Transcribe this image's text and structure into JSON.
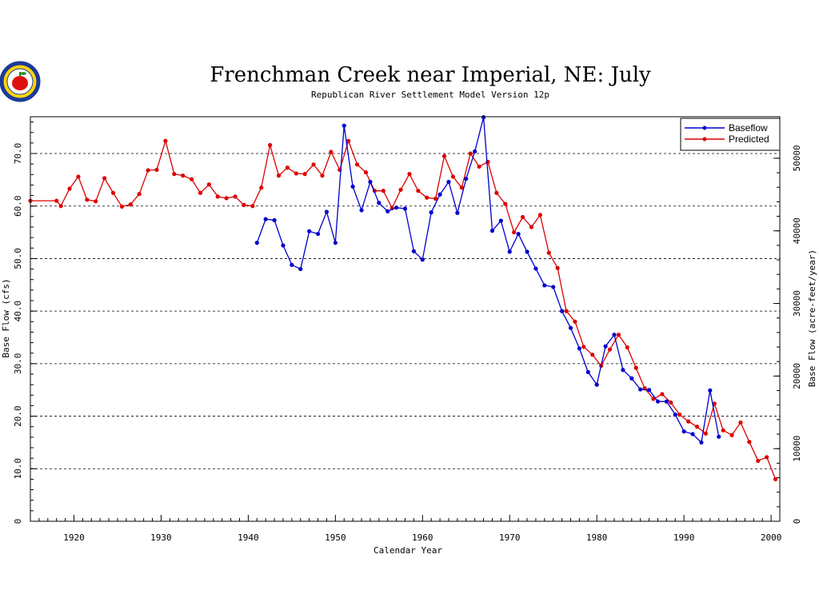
{
  "chart_data": {
    "type": "line",
    "title": "Frenchman Creek near Imperial, NE: July",
    "subtitle": "Republican River Settlement Model Version 12p",
    "xlabel": "Calendar Year",
    "ylabel": "Base Flow (cfs)",
    "ylabel_right": "Base Flow (acre-feet/year)",
    "xlim": [
      1915,
      2001
    ],
    "ylim": [
      0,
      77
    ],
    "x_ticks": [
      1920,
      1930,
      1940,
      1950,
      1960,
      1970,
      1980,
      1990,
      2000
    ],
    "x_tick_labels": [
      "1920",
      "1930",
      "1940",
      "1950",
      "1960",
      "1970",
      "1980",
      "1990",
      "2000"
    ],
    "y_ticks": [
      0,
      10,
      20,
      30,
      40,
      50,
      60,
      70
    ],
    "y_tick_labels": [
      "0",
      "10.0",
      "20.0",
      "30.0",
      "40.0",
      "50.0",
      "60.0",
      "70.0"
    ],
    "right_ticks": [
      0,
      10000,
      20000,
      30000,
      40000,
      50000
    ],
    "right_tick_labels": [
      "0",
      "10000",
      "20000",
      "30000",
      "40000",
      "50000"
    ],
    "right_scale_cfs_per_unit": 0.001382,
    "grid": "horizontal dashed",
    "legend_placement": "top-right",
    "series": [
      {
        "name": "Baseflow",
        "color": "#0000cc",
        "x": [
          1941,
          1942,
          1943,
          1944,
          1945,
          1946,
          1947,
          1948,
          1949,
          1950,
          1951,
          1952,
          1953,
          1954,
          1955,
          1956,
          1957,
          1958,
          1959,
          1960,
          1961,
          1962,
          1963,
          1964,
          1965,
          1966,
          1967,
          1968,
          1969,
          1970,
          1971,
          1972,
          1973,
          1974,
          1975,
          1976,
          1977,
          1978,
          1979,
          1980,
          1981,
          1982,
          1983,
          1984,
          1985,
          1986,
          1987,
          1988,
          1989,
          1990,
          1991,
          1992,
          1993,
          1994
        ],
        "y": [
          53.0,
          57.5,
          57.3,
          52.5,
          48.8,
          48.0,
          55.2,
          54.7,
          58.9,
          53.0,
          75.3,
          63.7,
          59.2,
          64.6,
          60.6,
          59.0,
          59.7,
          59.5,
          51.4,
          49.8,
          58.8,
          62.2,
          64.6,
          58.7,
          65.2,
          70.4,
          76.9,
          55.3,
          57.2,
          51.3,
          54.7,
          51.3,
          48.1,
          44.9,
          44.6,
          40.0,
          36.8,
          32.9,
          28.4,
          26.0,
          33.3,
          35.5,
          28.8,
          27.2,
          25.1,
          25.0,
          22.8,
          22.8,
          20.3,
          17.1,
          16.6,
          15.0,
          24.9,
          16.1
        ]
      },
      {
        "name": "Predicted",
        "color": "#dd0000",
        "x": [
          1915,
          1918,
          1918.5,
          1919.5,
          1920.5,
          1921.5,
          1922.5,
          1923.5,
          1924.5,
          1925.5,
          1926.5,
          1927.5,
          1928.5,
          1929.5,
          1930.5,
          1931.5,
          1932.5,
          1933.5,
          1934.5,
          1935.5,
          1936.5,
          1937.5,
          1938.5,
          1939.5,
          1940.5,
          1941.5,
          1942.5,
          1943.5,
          1944.5,
          1945.5,
          1946.5,
          1947.5,
          1948.5,
          1949.5,
          1950.5,
          1951.5,
          1952.5,
          1953.5,
          1954.5,
          1955.5,
          1956.5,
          1957.5,
          1958.5,
          1959.5,
          1960.5,
          1961.5,
          1962.5,
          1963.5,
          1964.5,
          1965.5,
          1966.5,
          1967.5,
          1968.5,
          1969.5,
          1970.5,
          1971.5,
          1972.5,
          1973.5,
          1974.5,
          1975.5,
          1976.5,
          1977.5,
          1978.5,
          1979.5,
          1980.5,
          1981.5,
          1982.5,
          1983.5,
          1984.5,
          1985.5,
          1986.5,
          1987.5,
          1988.5,
          1989.5,
          1990.5,
          1991.5,
          1992.5,
          1993.5,
          1994.5,
          1995.5,
          1996.5,
          1997.5,
          1998.5,
          1999.5,
          2000.5
        ],
        "y": [
          61.0,
          61.0,
          60.0,
          63.3,
          65.6,
          61.2,
          60.9,
          65.3,
          62.5,
          59.9,
          60.3,
          62.3,
          66.8,
          66.9,
          72.4,
          66.1,
          65.8,
          65.1,
          62.5,
          64.1,
          61.8,
          61.5,
          61.8,
          60.2,
          60.0,
          63.5,
          71.6,
          65.8,
          67.3,
          66.2,
          66.1,
          67.9,
          65.8,
          70.3,
          66.9,
          72.4,
          67.9,
          66.4,
          62.9,
          62.9,
          59.6,
          63.1,
          66.1,
          62.9,
          61.6,
          61.4,
          69.5,
          65.6,
          63.5,
          70.0,
          67.5,
          68.4,
          62.5,
          60.4,
          55.0,
          57.9,
          56.0,
          58.3,
          51.1,
          48.2,
          40.0,
          38.0,
          33.2,
          31.7,
          29.6,
          32.7,
          35.5,
          33.1,
          29.2,
          25.3,
          23.3,
          24.2,
          22.6,
          20.3,
          19.0,
          18.0,
          16.7,
          22.4,
          17.3,
          16.4,
          18.8,
          15.1,
          11.5,
          12.2,
          8.0
        ]
      }
    ]
  }
}
